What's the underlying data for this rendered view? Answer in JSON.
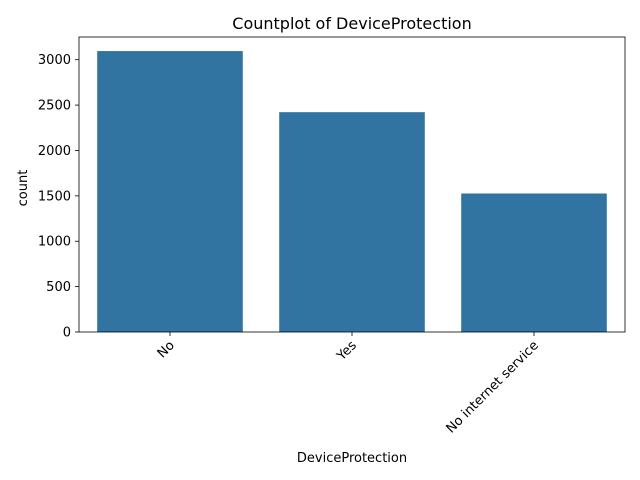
{
  "chart_data": {
    "type": "bar",
    "title": "Countplot of DeviceProtection",
    "xlabel": "DeviceProtection",
    "ylabel": "count",
    "categories": [
      "No",
      "Yes",
      "No internet service"
    ],
    "values": [
      3095,
      2422,
      1526
    ],
    "ylim": [
      0,
      3250
    ],
    "yticks": [
      0,
      500,
      1000,
      1500,
      2000,
      2500,
      3000
    ],
    "ytick_labels": [
      "0",
      "500",
      "1000",
      "1500",
      "2000",
      "2500",
      "3000"
    ],
    "xtick_rotation": 45,
    "bar_color": "#3274a1",
    "grid": false,
    "legend": "none"
  }
}
